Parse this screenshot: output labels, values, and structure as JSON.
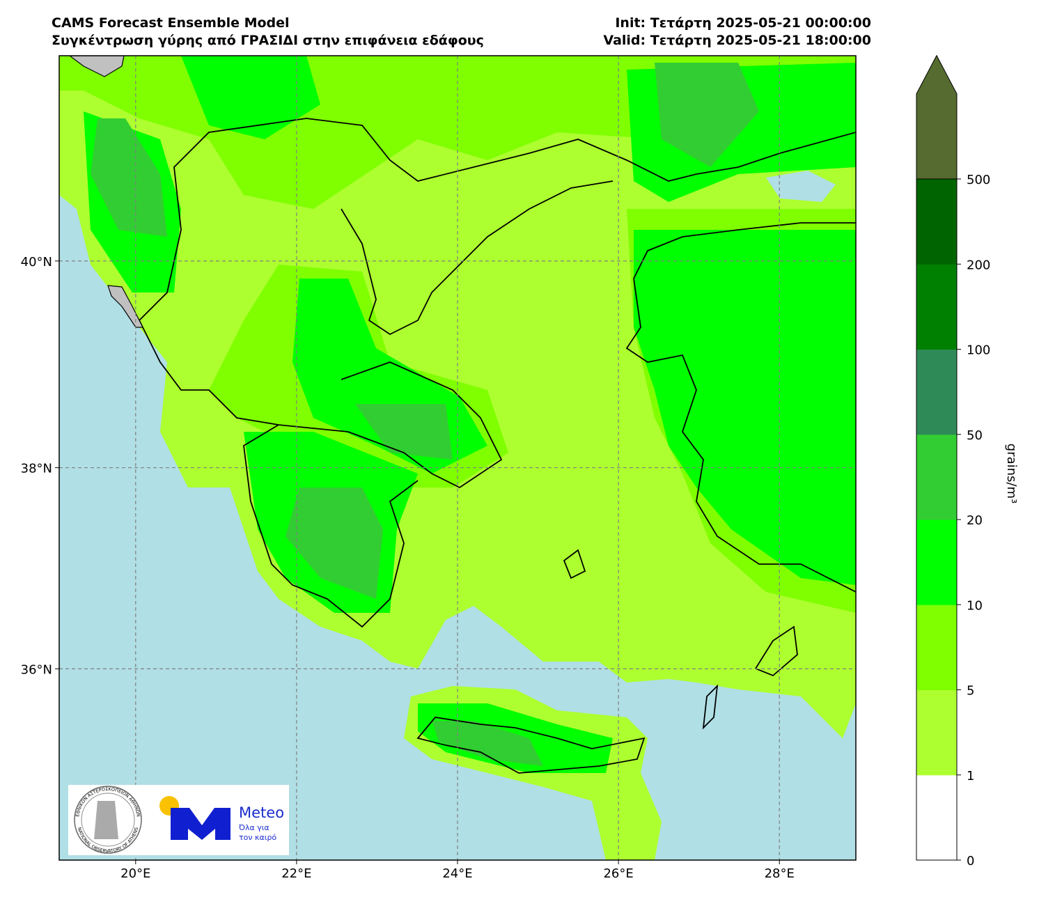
{
  "header": {
    "title": "CAMS Forecast Ensemble Model",
    "subtitle": "Συγκέντρωση γύρης από ΓΡΑΣΙΔΙ στην επιφάνεια εδάφους",
    "init": "Init: Τετάρτη 2025-05-21 00:00:00",
    "valid": "Valid: Τετάρτη 2025-05-21 18:00:00"
  },
  "map": {
    "xlim": [
      19.05,
      28.95
    ],
    "ylim": [
      34.05,
      41.93
    ],
    "projection": "mercator",
    "grid": true,
    "xticks": [
      {
        "value": 20,
        "label": "20°E"
      },
      {
        "value": 22,
        "label": "22°E"
      },
      {
        "value": 24,
        "label": "24°E"
      },
      {
        "value": 26,
        "label": "26°E"
      },
      {
        "value": 28,
        "label": "28°E"
      }
    ],
    "yticks": [
      {
        "value": 36,
        "label": "36°N"
      },
      {
        "value": 38,
        "label": "38°N"
      },
      {
        "value": 40,
        "label": "40°N"
      }
    ]
  },
  "colorbar": {
    "label": "grains/m³",
    "ticks": [
      0,
      1,
      5,
      10,
      20,
      50,
      100,
      200,
      500
    ],
    "colors": [
      "#ffffff",
      "#adff2f",
      "#7fff00",
      "#00ff00",
      "#32cd32",
      "#2e8b57",
      "#008000",
      "#006400"
    ],
    "extend_color": "#556b2f"
  },
  "logo": {
    "seal_greek": "ΕΘΝΙΚΟΝ ΑΣΤΕΡΟΣΚΟΠΕΙΟΝ ΑΘΗΝΩΝ",
    "seal_english": "NATIONAL OBSERVATORY OF ATHENS",
    "brand": "Meteo",
    "slogan_1": "Όλα για",
    "slogan_2": "τον καιρό"
  }
}
